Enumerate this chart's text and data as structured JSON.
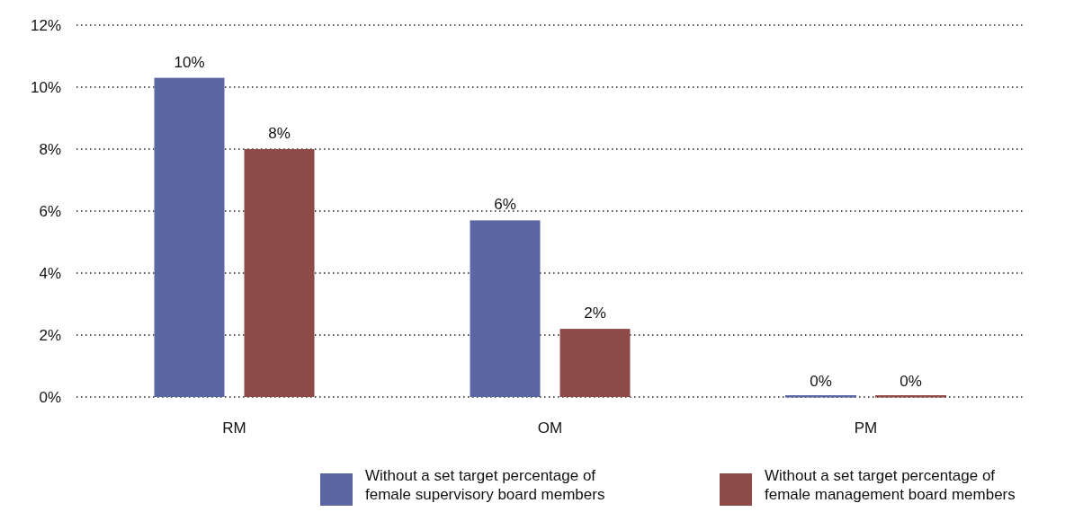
{
  "chart_data": {
    "type": "bar",
    "categories": [
      "RM",
      "OM",
      "PM"
    ],
    "series": [
      {
        "name": "Without a set target percentage of female supervisory board members",
        "color": "#5a67a3",
        "values": [
          10.3,
          5.7,
          0
        ],
        "value_labels": [
          "10%",
          "6%",
          "0%"
        ]
      },
      {
        "name": "Without a set target percentage of female management board members",
        "color": "#8e4a47",
        "values": [
          8,
          2.2,
          0
        ],
        "value_labels": [
          "8%",
          "2%",
          "0%"
        ]
      }
    ],
    "ylim": [
      0,
      12
    ],
    "yticks": [
      {
        "value": 0,
        "label": "0%"
      },
      {
        "value": 2,
        "label": "2%"
      },
      {
        "value": 4,
        "label": "4%"
      },
      {
        "value": 6,
        "label": "6%"
      },
      {
        "value": 8,
        "label": "8%"
      },
      {
        "value": 10,
        "label": "10%"
      },
      {
        "value": 12,
        "label": "12%"
      }
    ],
    "grid": "y",
    "legend": "bottom"
  }
}
